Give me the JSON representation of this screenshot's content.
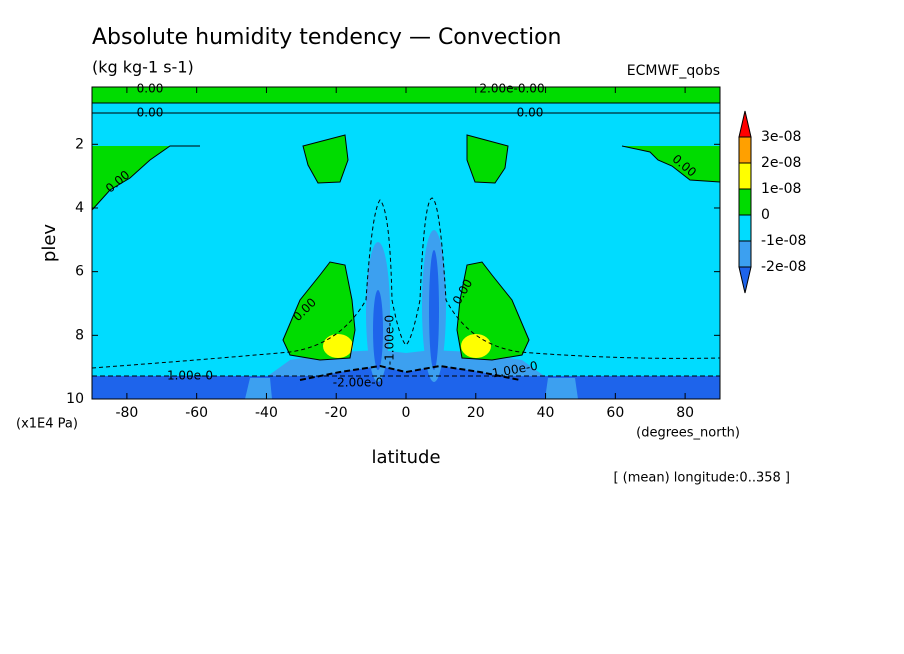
{
  "chart_data": {
    "type": "contour",
    "title": "Absolute humidity tendency — Convection",
    "subtitle": "(kg kg-1 s-1)",
    "source": "ECMWF_qobs",
    "x_label": "latitude",
    "y_label": "plev",
    "x_unit": "(degrees_north)",
    "y_unit": "(x1E4 Pa)",
    "note": "[ (mean) longitude:0..358 ]",
    "xlim": [
      -90,
      90
    ],
    "xticks": [
      -80,
      -60,
      -40,
      -20,
      0,
      20,
      40,
      60,
      80
    ],
    "ylim": [
      10,
      0.2
    ],
    "yticks": [
      2,
      4,
      6,
      8,
      10
    ],
    "contour_labels": [
      "0.00",
      "0.00",
      "2.00e-0.00",
      "0.00",
      "0.00",
      "0.00",
      "0.00",
      "0.00",
      "1.00e-0",
      "-2.00e-0",
      "1.00e-0",
      "-1.00e-0"
    ],
    "colorbar": {
      "ticks": [
        {
          "value": -2e-08,
          "label": "-2e-08"
        },
        {
          "value": -1e-08,
          "label": "-1e-08"
        },
        0,
        {
          "value": 1e-08,
          "label": "1e-08"
        },
        {
          "value": 2e-08,
          "label": "2e-08"
        },
        {
          "value": 3e-08,
          "label": "3e-08"
        }
      ],
      "colors": [
        "#1e64eb",
        "#3ca0f0",
        "#00dcff",
        "#00dc00",
        "#ffff00",
        "#ffa000",
        "#ff0000"
      ]
    }
  }
}
